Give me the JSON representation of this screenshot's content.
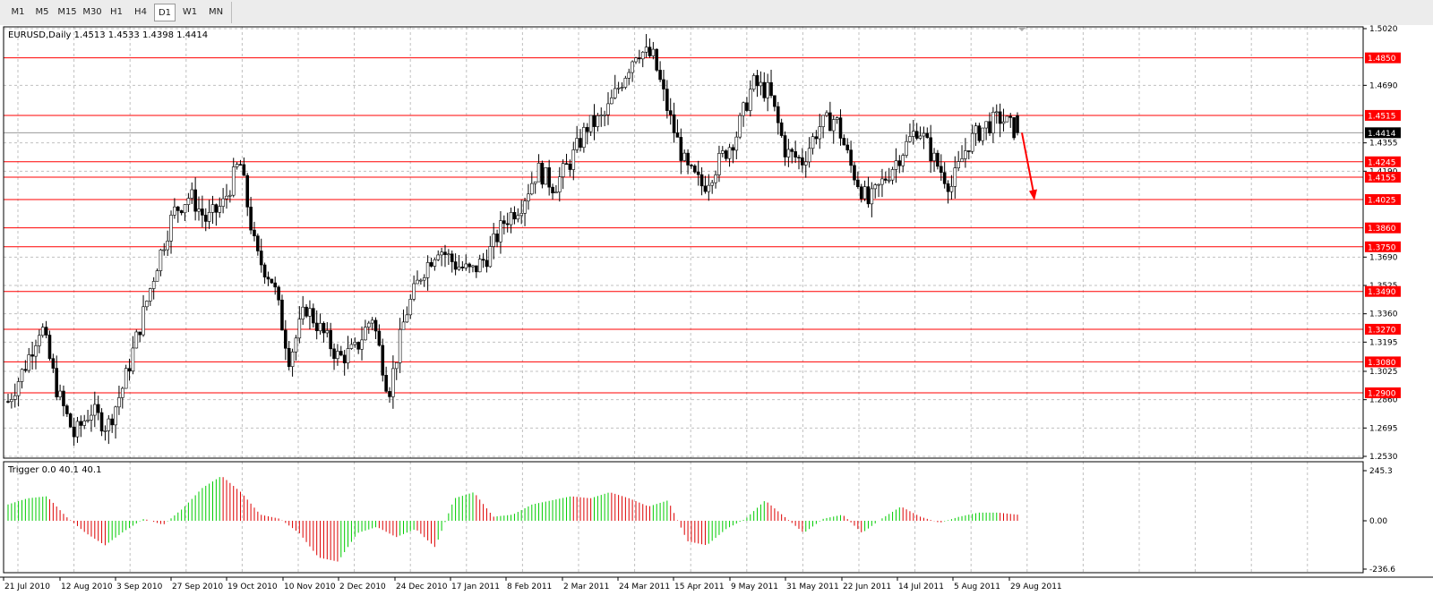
{
  "toolbar": {
    "timeframes": [
      "M1",
      "M5",
      "M15",
      "M30",
      "H1",
      "H4",
      "D1",
      "W1",
      "MN"
    ],
    "active": "D1"
  },
  "main_chart": {
    "title": "EURUSD,Daily  1.4513 1.4533 1.4398 1.4414",
    "current_price": "1.4414",
    "price_scale": [
      "1.5020",
      "1.4690",
      "1.4355",
      "1.4190",
      "1.3690",
      "1.3525",
      "1.3360",
      "1.3195",
      "1.3025",
      "1.2860",
      "1.2695",
      "1.2530"
    ],
    "levels": [
      "1.4850",
      "1.4515",
      "1.4245",
      "1.4155",
      "1.4025",
      "1.3860",
      "1.3750",
      "1.3490",
      "1.3270",
      "1.3080",
      "1.2900"
    ]
  },
  "indicator": {
    "title": "Trigger 0.0 40.1 40.1",
    "scale": [
      "245.3",
      "0.00",
      "-236.6"
    ]
  },
  "dates": [
    "21 Jul 2010",
    "12 Aug 2010",
    "3 Sep 2010",
    "27 Sep 2010",
    "19 Oct 2010",
    "10 Nov 2010",
    "2 Dec 2010",
    "24 Dec 2010",
    "17 Jan 2011",
    "8 Feb 2011",
    "2 Mar 2011",
    "24 Mar 2011",
    "15 Apr 2011",
    "9 May 2011",
    "31 May 2011",
    "22 Jun 2011",
    "14 Jul 2011",
    "5 Aug 2011",
    "29 Aug 2011"
  ],
  "colors": {
    "level_line": "#ff0000",
    "label_bg": "#ff0000",
    "candle": "#000000",
    "hist_up": "#00cc00",
    "hist_down": "#dd0000",
    "grid": "#c0c0c0"
  },
  "chart_data": {
    "type": "candlestick",
    "symbol": "EURUSD",
    "timeframe": "Daily",
    "last_bar": {
      "open": 1.4513,
      "high": 1.4533,
      "low": 1.4398,
      "close": 1.4414
    },
    "ylim": [
      1.253,
      1.502
    ],
    "support_resistance": [
      1.485,
      1.4515,
      1.4245,
      1.4155,
      1.4025,
      1.386,
      1.375,
      1.349,
      1.327,
      1.308,
      1.29
    ],
    "approx_closes": [
      1.285,
      1.305,
      1.33,
      1.29,
      1.265,
      1.28,
      1.27,
      1.295,
      1.33,
      1.365,
      1.395,
      1.405,
      1.39,
      1.4,
      1.425,
      1.37,
      1.355,
      1.31,
      1.34,
      1.325,
      1.31,
      1.315,
      1.335,
      1.29,
      1.335,
      1.36,
      1.375,
      1.365,
      1.36,
      1.37,
      1.39,
      1.4,
      1.42,
      1.41,
      1.425,
      1.445,
      1.45,
      1.47,
      1.49,
      1.485,
      1.45,
      1.42,
      1.41,
      1.425,
      1.44,
      1.47,
      1.465,
      1.43,
      1.425,
      1.445,
      1.45,
      1.42,
      1.4,
      1.415,
      1.43,
      1.445,
      1.425,
      1.41,
      1.435,
      1.445,
      1.45,
      1.4414
    ],
    "trigger_ylim": [
      -236.6,
      245.3
    ],
    "trigger_approx": [
      80,
      110,
      120,
      20,
      -60,
      -120,
      -50,
      10,
      -20,
      60,
      160,
      220,
      140,
      30,
      10,
      -60,
      -180,
      -200,
      -60,
      -30,
      -80,
      -40,
      -130,
      110,
      140,
      20,
      30,
      80,
      100,
      120,
      110,
      140,
      110,
      70,
      100,
      -100,
      -120,
      -40,
      10,
      100,
      20,
      -60,
      10,
      30,
      -60,
      10,
      70,
      20,
      -10,
      20,
      40,
      40,
      30
    ]
  }
}
